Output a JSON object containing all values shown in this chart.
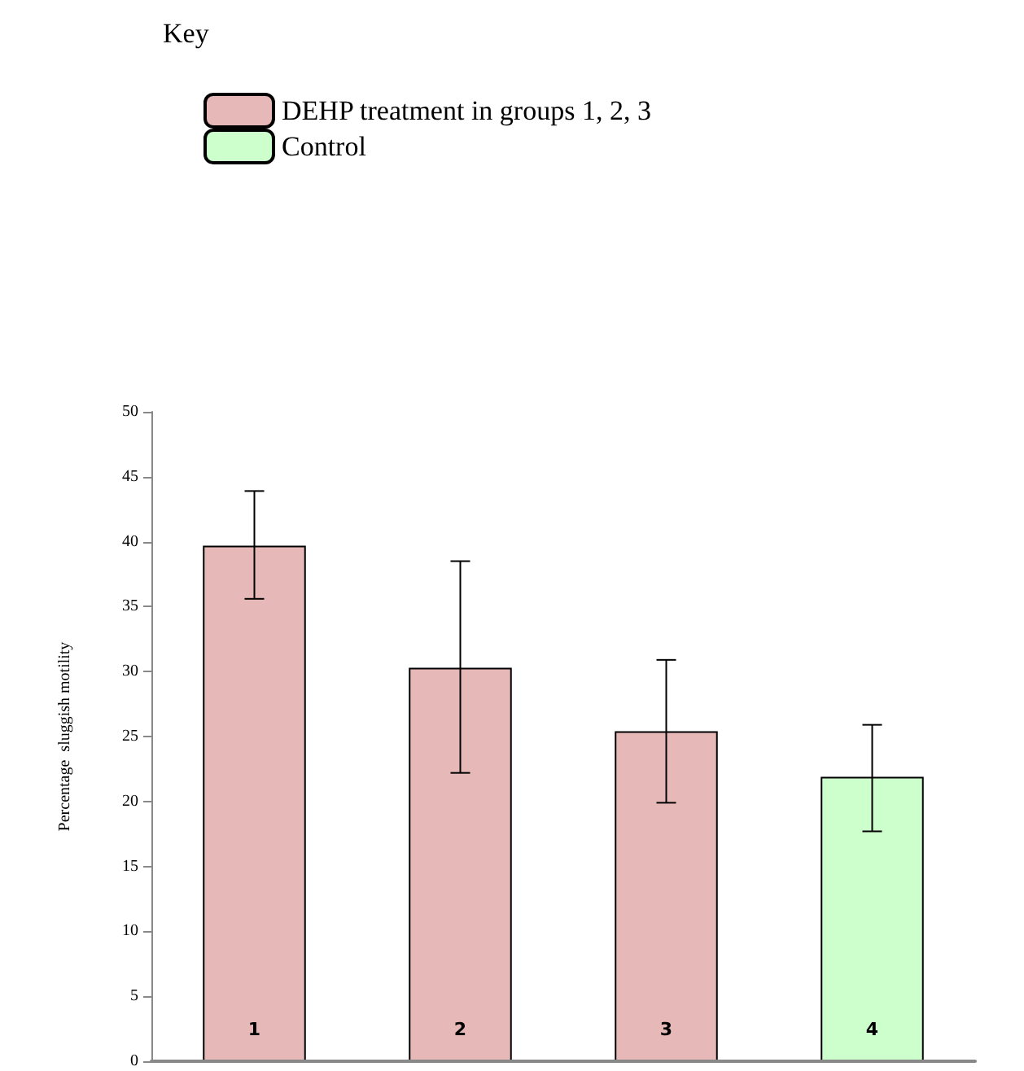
{
  "chart_data": {
    "type": "bar",
    "legend_title": "Key",
    "ylabel": "Percentage  sluggish motility",
    "categories": [
      "1",
      "2",
      "3",
      "4"
    ],
    "series": [
      {
        "name": "DEHP treatment in groups 1, 2, 3",
        "color": "#e6b8b7",
        "values": [
          39.7,
          30.3,
          25.4,
          null
        ],
        "errors": [
          [
            35.6,
            43.9
          ],
          [
            22.2,
            38.5
          ],
          [
            19.9,
            30.9
          ],
          null
        ]
      },
      {
        "name": "Control",
        "color": "#ccffcc",
        "values": [
          null,
          null,
          null,
          21.9
        ],
        "errors": [
          null,
          null,
          null,
          [
            17.7,
            25.9
          ]
        ]
      }
    ],
    "ylim": [
      0,
      50
    ],
    "yticks": [
      0,
      5,
      10,
      15,
      20,
      25,
      30,
      35,
      40,
      45,
      50
    ],
    "grid": false,
    "legend": "top left"
  }
}
